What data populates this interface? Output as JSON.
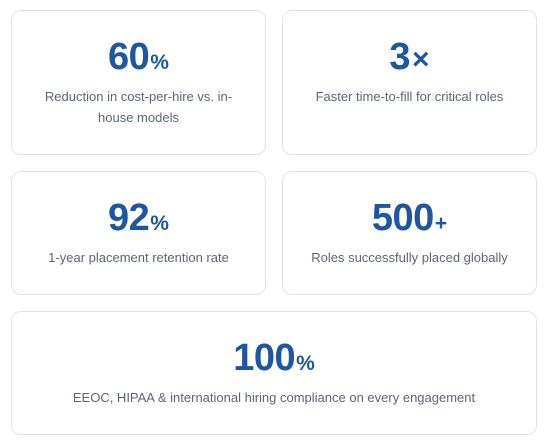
{
  "stats": [
    {
      "value": "60",
      "suffix": "%",
      "description": "Reduction in cost-per-hire vs. in-house models"
    },
    {
      "value": "3",
      "suffix": "×",
      "description": "Faster time-to-fill for critical roles"
    },
    {
      "value": "92",
      "suffix": "%",
      "description": "1-year placement retention rate"
    },
    {
      "value": "500",
      "suffix": "+",
      "description": "Roles successfully placed globally"
    },
    {
      "value": "100",
      "suffix": "%",
      "description": "EEOC, HIPAA & international hiring compliance on every engagement"
    }
  ],
  "colors": {
    "accent": "#1f56a3",
    "text_muted": "#5c6676",
    "border": "#dfe3e8"
  }
}
